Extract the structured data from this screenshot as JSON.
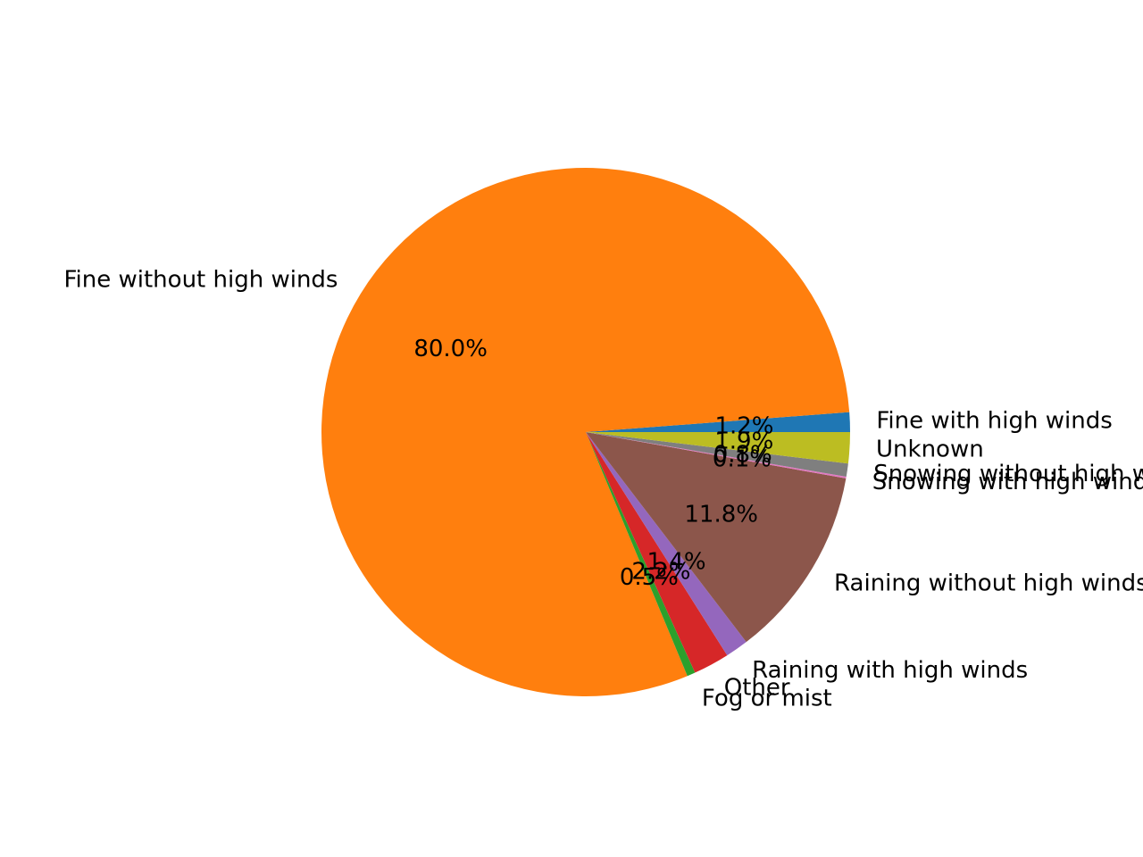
{
  "chart_data": {
    "type": "pie",
    "start_angle_deg": 0,
    "direction": "counterclockwise",
    "slices": [
      {
        "label": "Fine with high winds",
        "value": 1.2,
        "pct_label": "1.2%",
        "color": "#1f77b4"
      },
      {
        "label": "Fine without high winds",
        "value": 80.0,
        "pct_label": "80.0%",
        "color": "#ff7f0e"
      },
      {
        "label": "Fog or mist",
        "value": 0.5,
        "pct_label": "0.5%",
        "color": "#2ca02c"
      },
      {
        "label": "Other",
        "value": 2.2,
        "pct_label": "2.2%",
        "color": "#d62728"
      },
      {
        "label": "Raining with high winds",
        "value": 1.4,
        "pct_label": "1.4%",
        "color": "#9467bd"
      },
      {
        "label": "Raining without high winds",
        "value": 11.8,
        "pct_label": "11.8%",
        "color": "#8c564b"
      },
      {
        "label": "Snowing with high winds",
        "value": 0.1,
        "pct_label": "0.1%",
        "color": "#e377c2"
      },
      {
        "label": "Snowing without high winds",
        "value": 0.8,
        "pct_label": "0.8%",
        "color": "#7f7f7f"
      },
      {
        "label": "Unknown",
        "value": 1.9,
        "pct_label": "1.9%",
        "color": "#bcbd22"
      }
    ]
  }
}
